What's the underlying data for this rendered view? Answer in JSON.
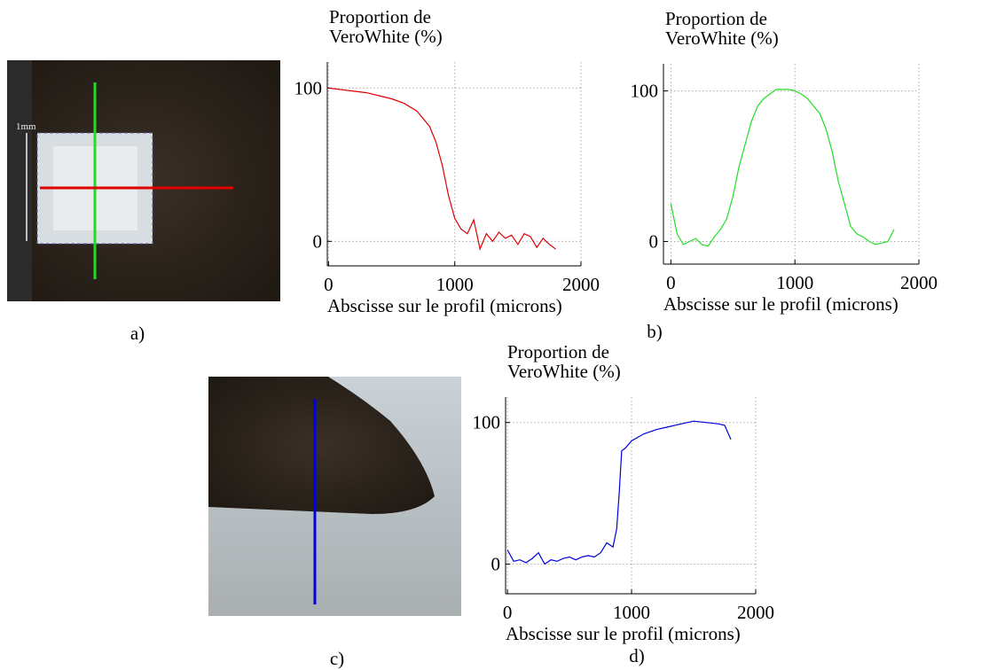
{
  "panel_labels": [
    "a)",
    "b)",
    "c)",
    "d)"
  ],
  "scale_label": "1mm",
  "chart_data": [
    {
      "type": "line",
      "ylabel_lines": [
        "Proportion de",
        "VeroWhite (%)"
      ],
      "xlabel": "Abscisse sur le profil (microns)",
      "xlim": [
        -10,
        2000
      ],
      "xticks": [
        0,
        1000,
        2000
      ],
      "ylim": [
        -16,
        117
      ],
      "yticks": [
        0,
        100
      ],
      "grid": true,
      "x": [
        0,
        100,
        200,
        300,
        400,
        500,
        600,
        700,
        800,
        850,
        900,
        950,
        1000,
        1050,
        1100,
        1150,
        1200,
        1250,
        1300,
        1350,
        1400,
        1450,
        1500,
        1550,
        1600,
        1650,
        1700,
        1750,
        1800
      ],
      "series": [
        {
          "name": "a",
          "color": "#e00000",
          "values": [
            100,
            99,
            98,
            97,
            95,
            93,
            90,
            85,
            75,
            65,
            50,
            30,
            15,
            8,
            5,
            14,
            -5,
            5,
            0,
            6,
            2,
            4,
            -2,
            5,
            3,
            -4,
            2,
            -2,
            -5
          ]
        }
      ]
    },
    {
      "type": "line",
      "ylabel_lines": [
        "Proportion de",
        "VeroWhite (%)"
      ],
      "xlabel": "Abscisse sur le profil (microns)",
      "xlim": [
        -60,
        2000
      ],
      "xticks": [
        0,
        1000,
        2000
      ],
      "ylim": [
        -15,
        118
      ],
      "yticks": [
        0,
        100
      ],
      "grid": true,
      "x": [
        0,
        50,
        100,
        150,
        200,
        250,
        300,
        350,
        400,
        450,
        500,
        550,
        600,
        650,
        700,
        750,
        800,
        850,
        900,
        950,
        1000,
        1050,
        1100,
        1150,
        1200,
        1250,
        1300,
        1350,
        1400,
        1450,
        1500,
        1550,
        1600,
        1650,
        1700,
        1750,
        1800
      ],
      "series": [
        {
          "name": "b",
          "color": "#22dd22",
          "values": [
            25,
            5,
            -2,
            0,
            2,
            -2,
            -3,
            3,
            8,
            15,
            30,
            50,
            65,
            80,
            90,
            95,
            98,
            101,
            101,
            101,
            100,
            98,
            95,
            90,
            85,
            75,
            60,
            40,
            25,
            10,
            5,
            3,
            0,
            -2,
            -1,
            0,
            8
          ]
        }
      ]
    },
    {
      "type": "line",
      "ylabel_lines": [
        "Proportion de",
        "VeroWhite (%)"
      ],
      "xlabel": "Abscisse sur le profil (microns)",
      "xlim": [
        -15,
        2000
      ],
      "xticks": [
        0,
        1000,
        2000
      ],
      "ylim": [
        -21,
        118
      ],
      "yticks": [
        0,
        100
      ],
      "grid": true,
      "x": [
        0,
        50,
        100,
        150,
        200,
        250,
        300,
        350,
        400,
        450,
        500,
        550,
        600,
        650,
        700,
        750,
        800,
        850,
        880,
        900,
        920,
        950,
        1000,
        1100,
        1200,
        1300,
        1400,
        1500,
        1600,
        1700,
        1750,
        1800
      ],
      "series": [
        {
          "name": "d",
          "color": "#0000dd",
          "values": [
            10,
            2,
            3,
            1,
            4,
            8,
            0,
            3,
            2,
            4,
            5,
            3,
            5,
            6,
            5,
            8,
            15,
            12,
            25,
            50,
            80,
            82,
            87,
            92,
            95,
            97,
            99,
            101,
            100,
            99,
            98,
            88
          ]
        }
      ]
    }
  ]
}
